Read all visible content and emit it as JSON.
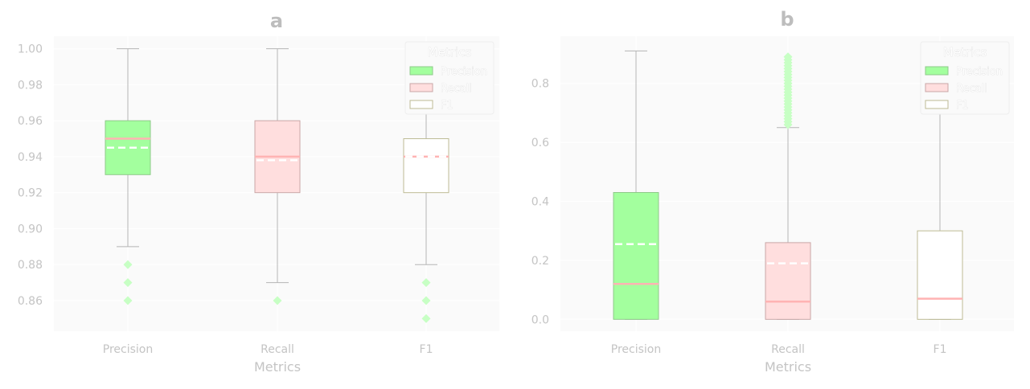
{
  "chart_data": [
    {
      "type": "box",
      "title": "a",
      "xlabel": "Metrics",
      "ylabel": "",
      "categories": [
        "Precision",
        "Recall",
        "F1"
      ],
      "ylim": [
        0.843,
        1.007
      ],
      "yticks": [
        0.86,
        0.88,
        0.9,
        0.92,
        0.94,
        0.96,
        0.98,
        1.0
      ],
      "ytick_labels": [
        "0.86",
        "0.88",
        "0.90",
        "0.92",
        "0.94",
        "0.96",
        "0.98",
        "1.00"
      ],
      "grid": true,
      "legend": {
        "title": "Metrics",
        "placement": "top-right",
        "entries": [
          "Precision",
          "Recall",
          "F1"
        ]
      },
      "boxes": [
        {
          "name": "Precision",
          "whisker_low": 0.89,
          "q1": 0.93,
          "median": 0.95,
          "q3": 0.96,
          "whisker_high": 1.0,
          "mean": 0.945,
          "outliers": [
            0.88,
            0.87,
            0.86
          ]
        },
        {
          "name": "Recall",
          "whisker_low": 0.87,
          "q1": 0.92,
          "median": 0.94,
          "q3": 0.96,
          "whisker_high": 1.0,
          "mean": 0.938,
          "outliers": [
            0.86
          ]
        },
        {
          "name": "F1",
          "whisker_low": 0.88,
          "q1": 0.92,
          "median": 0.94,
          "q3": 0.95,
          "whisker_high": 0.98,
          "mean": 0.94,
          "outliers": [
            0.87,
            0.86,
            0.85
          ]
        }
      ]
    },
    {
      "type": "box",
      "title": "b",
      "xlabel": "Metrics",
      "ylabel": "",
      "categories": [
        "Precision",
        "Recall",
        "F1"
      ],
      "ylim": [
        -0.04,
        0.96
      ],
      "yticks": [
        0.0,
        0.2,
        0.4,
        0.6,
        0.8
      ],
      "ytick_labels": [
        "0.0",
        "0.2",
        "0.4",
        "0.6",
        "0.8"
      ],
      "grid": true,
      "legend": {
        "title": "Metrics",
        "placement": "top-right",
        "entries": [
          "Precision",
          "Recall",
          "F1"
        ]
      },
      "boxes": [
        {
          "name": "Precision",
          "whisker_low": 0.0,
          "q1": 0.0,
          "median": 0.12,
          "q3": 0.43,
          "whisker_high": 0.91,
          "mean": 0.255,
          "outliers": []
        },
        {
          "name": "Recall",
          "whisker_low": 0.0,
          "q1": 0.0,
          "median": 0.06,
          "q3": 0.26,
          "whisker_high": 0.65,
          "mean": 0.19,
          "outliers": [
            0.66,
            0.67,
            0.68,
            0.69,
            0.7,
            0.71,
            0.72,
            0.73,
            0.74,
            0.75,
            0.76,
            0.77,
            0.78,
            0.79,
            0.8,
            0.81,
            0.82,
            0.83,
            0.84,
            0.85,
            0.86,
            0.87,
            0.88,
            0.89
          ]
        },
        {
          "name": "F1",
          "whisker_low": 0.0,
          "q1": 0.0,
          "median": 0.07,
          "q3": 0.3,
          "whisker_high": 0.71,
          "mean": 0.2,
          "outliers": []
        }
      ]
    }
  ],
  "colors": {
    "Precision": {
      "fill": "#a3ff9e",
      "edge": "#8fc98a"
    },
    "Recall": {
      "fill": "#ffdede",
      "edge": "#c9a7a7"
    },
    "F1": {
      "fill": "#ffffff",
      "edge": "#bdbb94"
    },
    "median": "#ffb3b3",
    "mean": "#ffffff",
    "whisker": "#b5b5b5",
    "outlier": "#c7ffc4",
    "axes_bg": "#fafafa",
    "grid": "#ffffff"
  }
}
